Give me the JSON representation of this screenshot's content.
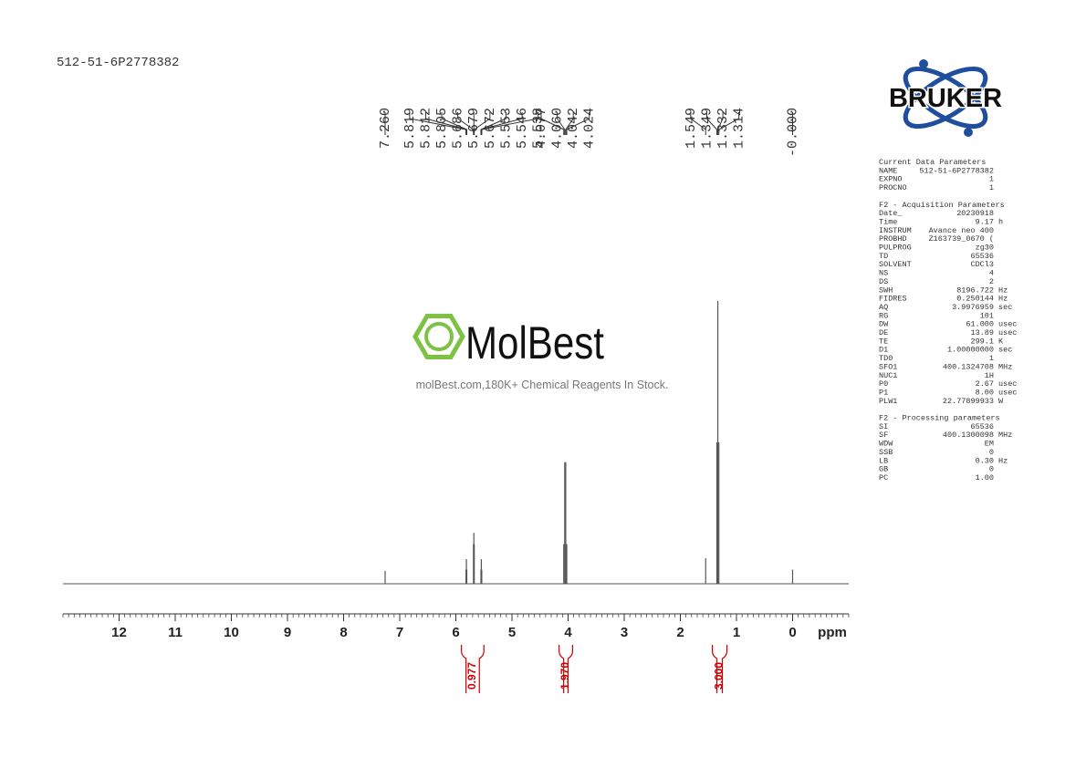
{
  "header": {
    "sample_id": "512-51-6P2778382"
  },
  "chart_data": {
    "type": "spectrum",
    "x_label": "ppm",
    "xlim": [
      13,
      -1
    ],
    "xticks": [
      12,
      11,
      10,
      9,
      8,
      7,
      6,
      5,
      4,
      3,
      2,
      1,
      0
    ],
    "xminor_step": 0.1,
    "ylim": [
      0,
      100
    ],
    "color": "#555555",
    "integral_color": "#cc0000",
    "peaks": {
      "x": [
        7.26,
        5.819,
        5.812,
        5.805,
        5.686,
        5.679,
        5.672,
        5.553,
        5.546,
        5.538,
        4.077,
        4.06,
        4.042,
        4.024,
        1.549,
        1.349,
        1.332,
        1.314,
        0
      ],
      "x_labels": [
        "7.260",
        "5.819",
        "5.812",
        "5.805",
        "5.686",
        "5.679",
        "5.672",
        "5.553",
        "5.546",
        "5.538",
        "4.077",
        "4.060",
        "4.042",
        "4.024",
        "1.549",
        "1.349",
        "1.332",
        "1.314",
        "-0.000"
      ],
      "values": [
        4.5,
        5,
        8.7,
        5,
        14,
        18,
        14,
        5,
        8.7,
        5,
        14,
        43,
        43,
        14,
        9,
        50,
        100,
        50,
        5
      ]
    },
    "integrals": {
      "ranges": [
        [
          5.9,
          5.5
        ],
        [
          4.16,
          3.92
        ],
        [
          1.43,
          1.17
        ]
      ],
      "values": [
        0.977,
        1.97,
        3
      ],
      "value_labels": [
        "0.977",
        "1.970",
        "3.000"
      ]
    }
  },
  "watermark": {
    "brand": "MolBest",
    "slogan": "molBest.com,180K+ Chemical Reagents In Stock."
  },
  "logo": {
    "text": "BRUKER"
  },
  "parameters": [
    {
      "title": "Current Data Parameters",
      "rows": [
        {
          "name": "NAME",
          "value": "512-51-6P2778382"
        },
        {
          "name": "EXPNO",
          "value": "1"
        },
        {
          "name": "PROCNO",
          "value": "1"
        }
      ]
    },
    {
      "title": "F2 - Acquisition Parameters",
      "rows": [
        {
          "name": "Date_",
          "value": "20230918"
        },
        {
          "name": "Time",
          "value": "9.17",
          "unit": "h"
        },
        {
          "name": "INSTRUM",
          "value": "Avance neo 400"
        },
        {
          "name": "PROBHD",
          "value": "Z163739_0670 ("
        },
        {
          "name": "PULPROG",
          "value": "zg30"
        },
        {
          "name": "TD",
          "value": "65536"
        },
        {
          "name": "SOLVENT",
          "value": "CDCl3"
        },
        {
          "name": "NS",
          "value": "4"
        },
        {
          "name": "DS",
          "value": "2"
        },
        {
          "name": "SWH",
          "value": "8196.722",
          "unit": "Hz"
        },
        {
          "name": "FIDRES",
          "value": "0.250144",
          "unit": "Hz"
        },
        {
          "name": "AQ",
          "value": "3.9976959",
          "unit": "sec"
        },
        {
          "name": "RG",
          "value": "101"
        },
        {
          "name": "DW",
          "value": "61.000",
          "unit": "usec"
        },
        {
          "name": "DE",
          "value": "13.89",
          "unit": "usec"
        },
        {
          "name": "TE",
          "value": "299.1",
          "unit": "K"
        },
        {
          "name": "D1",
          "value": "1.00000000",
          "unit": "sec"
        },
        {
          "name": "TD0",
          "value": "1"
        },
        {
          "name": "SFO1",
          "value": "400.1324708",
          "unit": "MHz"
        },
        {
          "name": "NUC1",
          "value": "1H"
        },
        {
          "name": "P0",
          "value": "2.67",
          "unit": "usec"
        },
        {
          "name": "P1",
          "value": "8.00",
          "unit": "usec"
        },
        {
          "name": "PLW1",
          "value": "22.77899933",
          "unit": "W"
        }
      ]
    },
    {
      "title": "F2 - Processing parameters",
      "rows": [
        {
          "name": "SI",
          "value": "65536"
        },
        {
          "name": "SF",
          "value": "400.1300098",
          "unit": "MHz"
        },
        {
          "name": "WDW",
          "value": "EM"
        },
        {
          "name": "SSB",
          "value": "0"
        },
        {
          "name": "LB",
          "value": "0.30",
          "unit": "Hz"
        },
        {
          "name": "GB",
          "value": "0"
        },
        {
          "name": "PC",
          "value": "1.00"
        }
      ]
    }
  ]
}
